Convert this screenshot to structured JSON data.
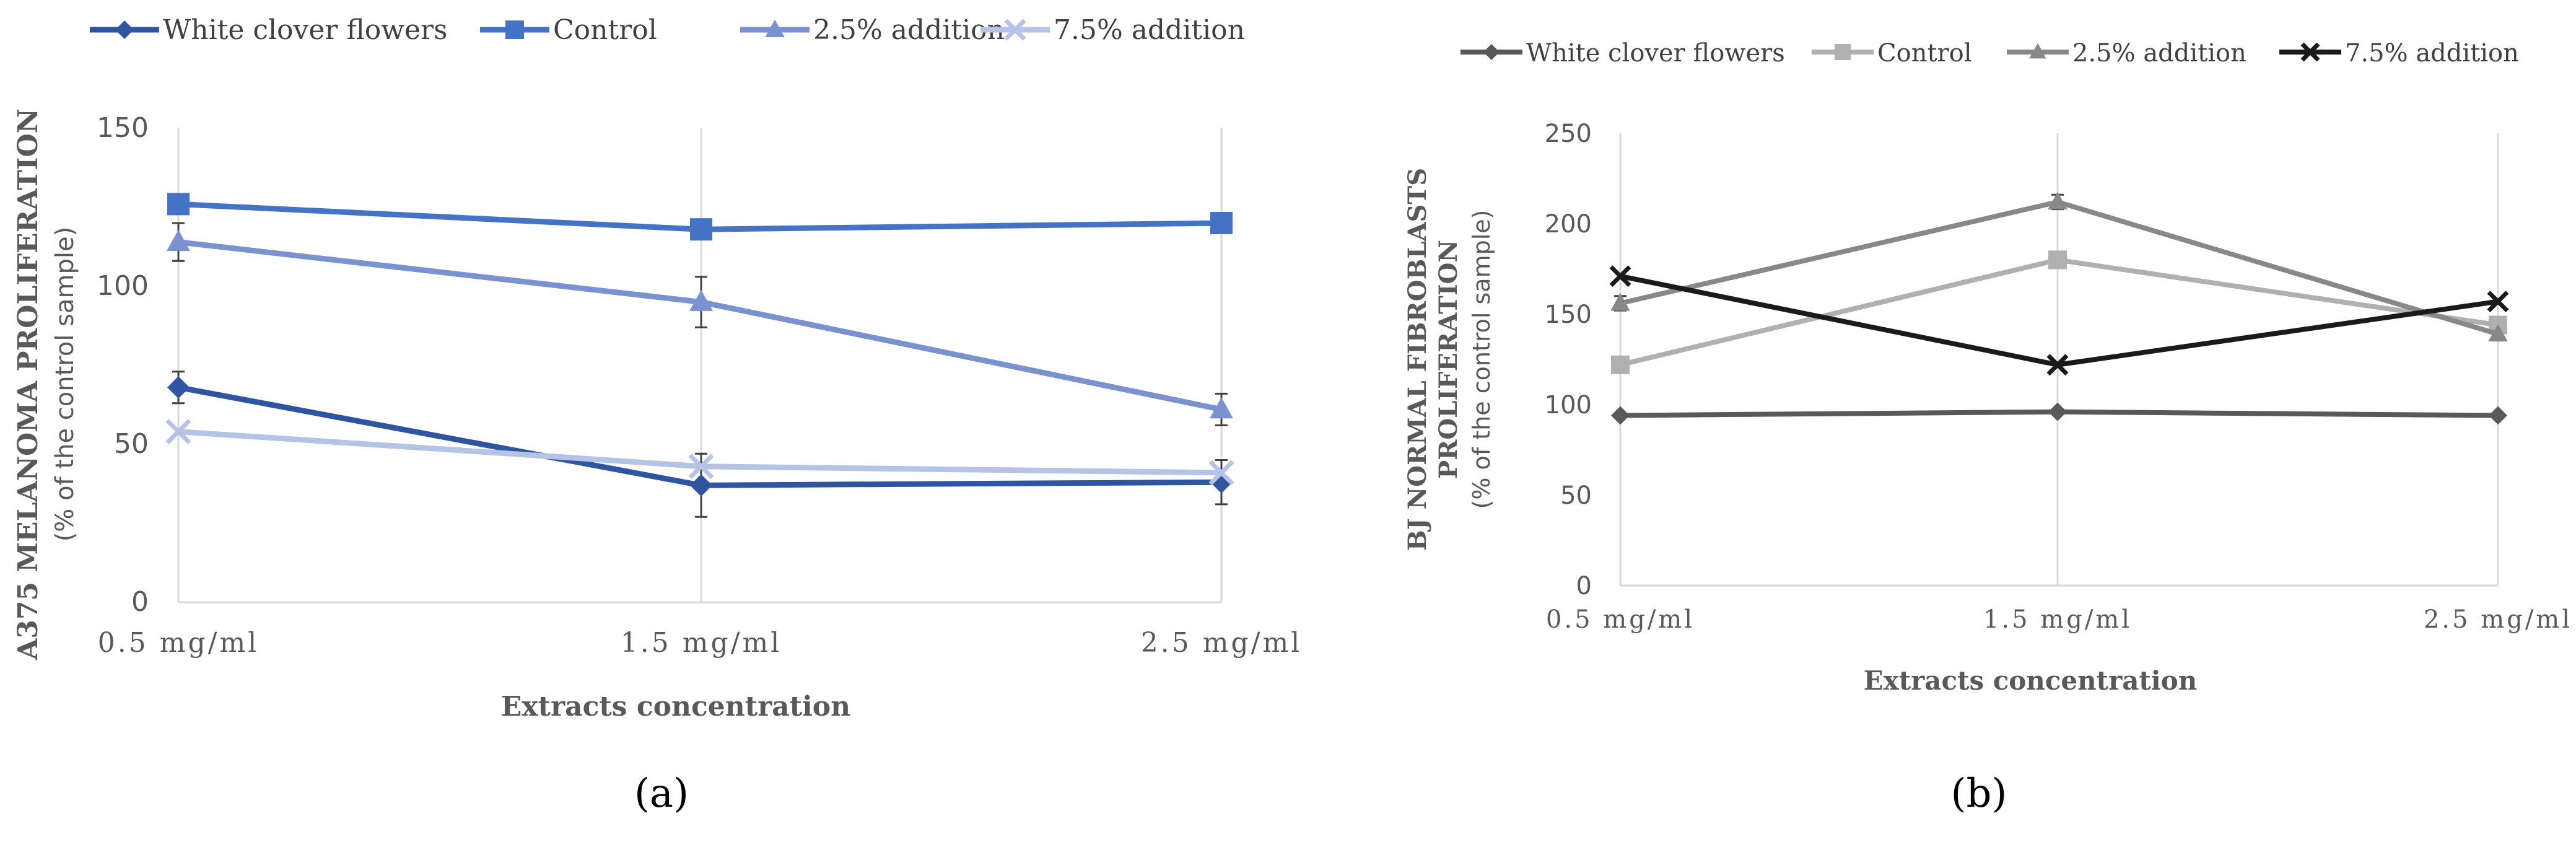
{
  "chart_data": [
    {
      "type": "line",
      "panel_label": "(a)",
      "title": "",
      "xlabel": "Extracts concentration",
      "ylabel": "A375 MELANOMA PROLIFERATION",
      "ylabel_sub": "(% of the control sample)",
      "ylim": [
        0,
        150
      ],
      "yticks": [
        0,
        50,
        100,
        150
      ],
      "categories": [
        "0.5 mg/ml",
        "1.5 mg/ml",
        "2.5 mg/ml"
      ],
      "grid": "vertical",
      "legend_position": "top",
      "series": [
        {
          "name": "White clover flowers",
          "marker": "diamond",
          "color": "#2f55a0",
          "values": [
            68,
            37,
            38
          ],
          "errors": [
            5,
            10,
            7
          ]
        },
        {
          "name": "Control",
          "marker": "square",
          "color": "#4472c4",
          "values": [
            126,
            118,
            120
          ],
          "errors": [
            0,
            0,
            0
          ]
        },
        {
          "name": "2.5% addition",
          "marker": "triangle",
          "color": "#7a92cf",
          "values": [
            114,
            95,
            61
          ],
          "errors": [
            6,
            8,
            5
          ]
        },
        {
          "name": "7.5% addition",
          "marker": "x",
          "color": "#b4c3e6",
          "values": [
            54,
            43,
            41
          ],
          "errors": [
            0,
            0,
            0
          ]
        }
      ]
    },
    {
      "type": "line",
      "panel_label": "(b)",
      "title": "",
      "xlabel": "Extracts concentration",
      "ylabel": "BJ NORMAL FIBROBLASTS PROLIFERATION",
      "ylabel_sub": "(% of the control sample)",
      "ylim": [
        0,
        250
      ],
      "yticks": [
        0,
        50,
        100,
        150,
        200,
        250
      ],
      "categories": [
        "0.5 mg/ml",
        "1.5 mg/ml",
        "2.5 mg/ml"
      ],
      "grid": "vertical",
      "legend_position": "top",
      "series": [
        {
          "name": "White clover flowers",
          "marker": "diamond",
          "color": "#595959",
          "values": [
            94,
            96,
            94
          ],
          "errors": [
            0,
            0,
            0
          ]
        },
        {
          "name": "Control",
          "marker": "square",
          "color": "#b0b0b0",
          "values": [
            122,
            180,
            144
          ],
          "errors": [
            0,
            0,
            0
          ]
        },
        {
          "name": "2.5% addition",
          "marker": "triangle",
          "color": "#888888",
          "values": [
            156,
            212,
            139
          ],
          "errors": [
            4,
            4,
            0
          ]
        },
        {
          "name": "7.5% addition",
          "marker": "x",
          "color": "#1a1a1a",
          "values": [
            171,
            122,
            157
          ],
          "errors": [
            0,
            0,
            0
          ]
        }
      ]
    }
  ]
}
